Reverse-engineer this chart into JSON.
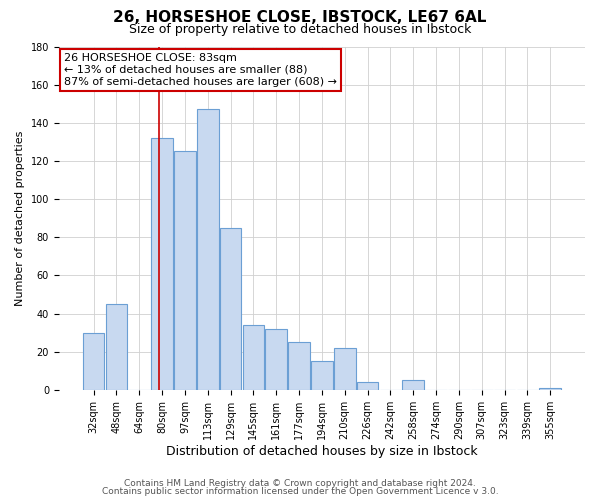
{
  "title": "26, HORSESHOE CLOSE, IBSTOCK, LE67 6AL",
  "subtitle": "Size of property relative to detached houses in Ibstock",
  "xlabel": "Distribution of detached houses by size in Ibstock",
  "ylabel": "Number of detached properties",
  "bar_labels": [
    "32sqm",
    "48sqm",
    "64sqm",
    "80sqm",
    "97sqm",
    "113sqm",
    "129sqm",
    "145sqm",
    "161sqm",
    "177sqm",
    "194sqm",
    "210sqm",
    "226sqm",
    "242sqm",
    "258sqm",
    "274sqm",
    "290sqm",
    "307sqm",
    "323sqm",
    "339sqm",
    "355sqm"
  ],
  "bar_values": [
    30,
    45,
    0,
    132,
    125,
    147,
    85,
    34,
    32,
    25,
    15,
    22,
    4,
    0,
    5,
    0,
    0,
    0,
    0,
    0,
    1
  ],
  "bar_color": "#c8d9f0",
  "bar_edge_color": "#6b9fd4",
  "annotation_line1": "26 HORSESHOE CLOSE: 83sqm",
  "annotation_line2": "← 13% of detached houses are smaller (88)",
  "annotation_line3": "87% of semi-detached houses are larger (608) →",
  "annotation_box_color": "#ffffff",
  "annotation_box_edge_color": "#cc0000",
  "vline_color": "#cc0000",
  "ylim": [
    0,
    180
  ],
  "yticks": [
    0,
    20,
    40,
    60,
    80,
    100,
    120,
    140,
    160,
    180
  ],
  "footer_line1": "Contains HM Land Registry data © Crown copyright and database right 2024.",
  "footer_line2": "Contains public sector information licensed under the Open Government Licence v 3.0.",
  "background_color": "#ffffff",
  "grid_color": "#d0d0d0",
  "title_fontsize": 11,
  "subtitle_fontsize": 9,
  "xlabel_fontsize": 9,
  "ylabel_fontsize": 8,
  "tick_fontsize": 7,
  "annotation_fontsize": 8,
  "footer_fontsize": 6.5
}
